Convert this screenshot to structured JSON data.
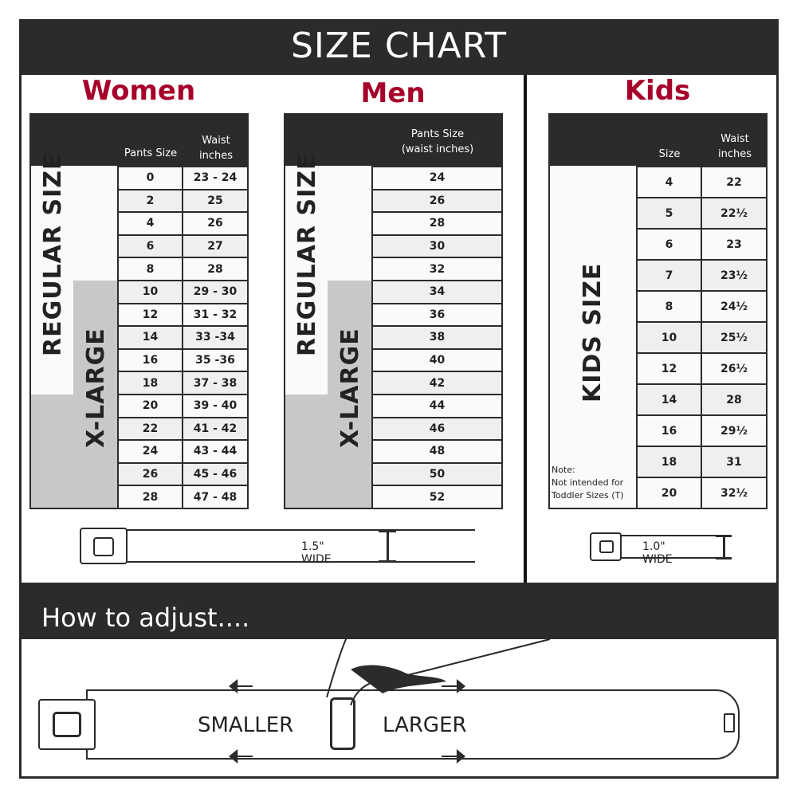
{
  "title": "SIZE CHART",
  "women": {
    "title": "Women",
    "col_size": "Pants Size",
    "col_waist_1": "Waist",
    "col_waist_2": "inches",
    "label_regular": "REGULAR SIZE",
    "label_xlarge": "X-LARGE",
    "rows": [
      [
        "0",
        "23 - 24"
      ],
      [
        "2",
        "25"
      ],
      [
        "4",
        "26"
      ],
      [
        "6",
        "27"
      ],
      [
        "8",
        "28"
      ],
      [
        "10",
        "29 - 30"
      ],
      [
        "12",
        "31 - 32"
      ],
      [
        "14",
        "33 -34"
      ],
      [
        "16",
        "35 -36"
      ],
      [
        "18",
        "37 - 38"
      ],
      [
        "20",
        "39 - 40"
      ],
      [
        "22",
        "41 - 42"
      ],
      [
        "24",
        "43 - 44"
      ],
      [
        "26",
        "45 - 46"
      ],
      [
        "28",
        "47 - 48"
      ]
    ],
    "width_label": "1.5\" WIDE"
  },
  "men": {
    "title": "Men",
    "col_size_1": "Pants Size",
    "col_size_2": "(waist inches)",
    "label_regular": "REGULAR SIZE",
    "label_xlarge": "X-LARGE",
    "rows": [
      "24",
      "26",
      "28",
      "30",
      "32",
      "34",
      "36",
      "38",
      "40",
      "42",
      "44",
      "46",
      "48",
      "50",
      "52"
    ]
  },
  "kids": {
    "title": "Kids",
    "col_size": "Size",
    "col_waist_1": "Waist",
    "col_waist_2": "inches",
    "label": "KIDS SIZE",
    "note_1": "Note:",
    "note_2": "Not intended for",
    "note_3": "Toddler Sizes (T)",
    "rows": [
      [
        "4",
        "22"
      ],
      [
        "5",
        "22½"
      ],
      [
        "6",
        "23"
      ],
      [
        "7",
        "23½"
      ],
      [
        "8",
        "24½"
      ],
      [
        "10",
        "25½"
      ],
      [
        "12",
        "26½"
      ],
      [
        "14",
        "28"
      ],
      [
        "16",
        "29½"
      ],
      [
        "18",
        "31"
      ],
      [
        "20",
        "32½"
      ]
    ],
    "width_label": "1.0\" WIDE"
  },
  "adjust": {
    "title": "How to adjust....",
    "smaller": "SMALLER",
    "larger": "LARGER"
  },
  "colors": {
    "accent": "#a6002a",
    "dark": "#2b2b2b",
    "xlarge": "#c8c8c8",
    "row_alt": "#efefef"
  }
}
